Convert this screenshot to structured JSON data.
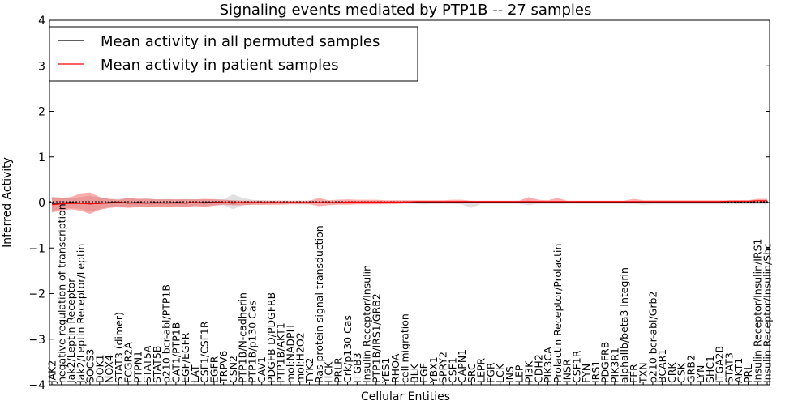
{
  "chart_data": {
    "type": "line",
    "title": "Signaling events mediated by PTP1B -- 27 samples",
    "xlabel": "Cellular Entities",
    "ylabel": "Inferred Activity",
    "ylim": [
      -4,
      4
    ],
    "yticks": [
      "4",
      "3",
      "2",
      "1",
      "0",
      "−1",
      "−2",
      "−3",
      "−4"
    ],
    "legend": {
      "placement": "top-left",
      "entries": [
        "Mean activity in all permuted samples",
        "Mean activity in patient samples"
      ]
    },
    "categories": [
      "JAK2",
      "negative regulation of transcription",
      "Jak2/Leptin Receptor",
      "Jak2/Leptin Receptor/Leptin",
      "SOCS3",
      "DOK1",
      "NOX4",
      "STAT3 (dimer)",
      "FCGR2A",
      "PTPN1",
      "STAT5A",
      "STAT5B",
      "p210 bcr-abl/PTP1B",
      "CAT1/PTP1B",
      "EGF/EGFR",
      "LAT",
      "CSF1/CSF1R",
      "EGFR",
      "TRPV6",
      "CSN2",
      "PTP1B/N-cadherin",
      "PTP1B/p130 Cas",
      "CAV1",
      "PDGFB-D/PDGFRB",
      "PTP1B/AKT1",
      "mol:NADPH",
      "mol:H2O2",
      "TYK2",
      "Ras protein signal transduction",
      "HCK",
      "PRLR",
      "Crk/p130 Cas",
      "ITGB3",
      "Insulin Receptor/Insulin",
      "PTP1B/IRS1/GRB2",
      "YES1",
      "RHOA",
      "cell migration",
      "BLK",
      "EGF",
      "YBX1",
      "SPRY2",
      "CSF1",
      "CAPN1",
      "SRC",
      "LEPR",
      "FGR",
      "LCK",
      "INS",
      "LEP",
      "PI3K",
      "CDH2",
      "PIK3CA",
      "Prolactin Receptor/Prolactin",
      "INSR",
      "CSF1R",
      "FYN",
      "IRS1",
      "PDGFRB",
      "PIK3R1",
      "alphaIIb/beta3 Integrin",
      "FER",
      "TXN",
      "p210 bcr-abl/Grb2",
      "BCAR1",
      "CRK",
      "CSK",
      "GRB2",
      "LYN",
      "SHC1",
      "ITGA2B",
      "STAT3",
      "AKT1",
      "PRL",
      "Insulin Receptor/Insulin/IRS1",
      "Insulin Receptor/Insulin/Shc"
    ],
    "series": [
      {
        "name": "Mean activity in all permuted samples",
        "color": "#000000",
        "values": [
          -0.02,
          -0.01,
          0.0,
          -0.01,
          -0.03,
          -0.02,
          0.0,
          0.01,
          -0.01,
          0.0,
          -0.01,
          0.0,
          -0.01,
          0.0,
          -0.01,
          0.0,
          0.0,
          0.01,
          0.0,
          -0.01,
          0.0,
          0.0,
          0.0,
          0.0,
          0.0,
          0.0,
          0.0,
          0.0,
          0.0,
          0.0,
          0.0,
          0.0,
          0.0,
          0.0,
          0.0,
          0.0,
          0.0,
          0.0,
          0.0,
          0.0,
          0.0,
          0.0,
          0.0,
          0.0,
          0.0,
          0.0,
          0.0,
          0.0,
          0.0,
          0.0,
          0.0,
          0.0,
          0.0,
          0.0,
          0.0,
          0.0,
          0.0,
          0.0,
          0.0,
          0.0,
          0.0,
          0.0,
          0.0,
          0.0,
          0.0,
          0.0,
          0.0,
          0.0,
          0.0,
          0.0,
          0.0,
          0.0,
          0.0,
          0.0,
          0.0,
          0.0
        ],
        "band_low": [
          -0.18,
          -0.15,
          -0.12,
          -0.14,
          -0.2,
          -0.15,
          -0.1,
          -0.08,
          -0.1,
          -0.09,
          -0.1,
          -0.08,
          -0.1,
          -0.08,
          -0.1,
          -0.07,
          -0.08,
          -0.07,
          -0.06,
          -0.15,
          -0.06,
          -0.05,
          -0.05,
          -0.04,
          -0.03,
          -0.03,
          -0.03,
          -0.03,
          -0.02,
          -0.03,
          -0.03,
          -0.03,
          -0.03,
          -0.03,
          -0.03,
          -0.03,
          -0.03,
          -0.03,
          -0.03,
          -0.04,
          -0.03,
          -0.03,
          -0.03,
          -0.04,
          -0.12,
          -0.03,
          -0.03,
          -0.03,
          -0.03,
          -0.03,
          -0.06,
          -0.03,
          -0.03,
          -0.03,
          -0.03,
          -0.03,
          -0.03,
          -0.03,
          -0.03,
          -0.03,
          -0.03,
          -0.03,
          -0.05,
          -0.04,
          -0.04,
          -0.04,
          -0.04,
          -0.04,
          -0.04,
          -0.04,
          -0.04,
          -0.04,
          -0.04,
          -0.04,
          -0.04,
          -0.04
        ],
        "band_high": [
          0.12,
          0.11,
          0.1,
          0.12,
          0.15,
          0.11,
          0.08,
          0.08,
          0.1,
          0.08,
          0.09,
          0.07,
          0.08,
          0.07,
          0.08,
          0.07,
          0.07,
          0.08,
          0.07,
          0.18,
          0.1,
          0.06,
          0.05,
          0.04,
          0.04,
          0.03,
          0.03,
          0.04,
          0.03,
          0.03,
          0.03,
          0.03,
          0.03,
          0.03,
          0.03,
          0.03,
          0.03,
          0.03,
          0.03,
          0.03,
          0.03,
          0.03,
          0.03,
          0.03,
          0.03,
          0.03,
          0.03,
          0.03,
          0.03,
          0.03,
          0.05,
          0.03,
          0.03,
          0.03,
          0.03,
          0.03,
          0.03,
          0.03,
          0.03,
          0.03,
          0.03,
          0.03,
          0.03,
          0.03,
          0.03,
          0.03,
          0.03,
          0.03,
          0.03,
          0.03,
          0.03,
          0.03,
          0.03,
          0.03,
          0.03,
          0.03
        ]
      },
      {
        "name": "Mean activity in patient samples",
        "color": "#ff0000",
        "values": [
          -0.05,
          -0.03,
          -0.02,
          -0.02,
          -0.03,
          -0.02,
          -0.01,
          0.0,
          -0.01,
          -0.01,
          -0.01,
          -0.01,
          -0.01,
          -0.01,
          -0.01,
          0.0,
          -0.01,
          0.0,
          0.0,
          0.0,
          0.0,
          0.0,
          0.0,
          0.0,
          0.0,
          0.0,
          0.0,
          0.0,
          0.0,
          0.0,
          0.0,
          0.01,
          0.01,
          0.01,
          0.01,
          0.01,
          0.01,
          0.01,
          0.02,
          0.02,
          0.02,
          0.02,
          0.02,
          0.02,
          0.02,
          0.02,
          0.02,
          0.02,
          0.02,
          0.02,
          0.02,
          0.02,
          0.02,
          0.02,
          0.02,
          0.02,
          0.02,
          0.02,
          0.02,
          0.02,
          0.02,
          0.02,
          0.02,
          0.02,
          0.02,
          0.02,
          0.02,
          0.02,
          0.02,
          0.02,
          0.02,
          0.03,
          0.03,
          0.03,
          0.04,
          0.04
        ],
        "band_low": [
          -0.22,
          -0.18,
          -0.15,
          -0.18,
          -0.25,
          -0.16,
          -0.12,
          -0.1,
          -0.12,
          -0.1,
          -0.1,
          -0.1,
          -0.1,
          -0.1,
          -0.1,
          -0.08,
          -0.1,
          -0.07,
          -0.05,
          -0.06,
          -0.06,
          -0.05,
          -0.05,
          -0.05,
          -0.05,
          -0.04,
          -0.04,
          -0.04,
          -0.08,
          -0.06,
          -0.05,
          -0.05,
          -0.04,
          -0.04,
          -0.04,
          -0.03,
          -0.03,
          -0.02,
          -0.02,
          -0.02,
          -0.02,
          -0.02,
          -0.02,
          -0.02,
          0.0,
          0.0,
          0.0,
          0.0,
          0.0,
          0.0,
          0.0,
          0.0,
          0.0,
          -0.02,
          0.0,
          0.0,
          0.0,
          0.0,
          0.0,
          0.0,
          0.0,
          0.0,
          0.0,
          0.0,
          0.0,
          0.0,
          0.0,
          0.0,
          0.0,
          0.0,
          0.0,
          0.0,
          0.0,
          0.0,
          0.02,
          0.02
        ],
        "band_high": [
          0.12,
          0.1,
          0.12,
          0.2,
          0.22,
          0.12,
          0.08,
          0.06,
          0.1,
          0.08,
          0.08,
          0.07,
          0.07,
          0.07,
          0.07,
          0.07,
          0.08,
          0.07,
          0.06,
          0.05,
          0.04,
          0.04,
          0.04,
          0.04,
          0.04,
          0.04,
          0.04,
          0.04,
          0.1,
          0.05,
          0.06,
          0.07,
          0.06,
          0.06,
          0.06,
          0.05,
          0.05,
          0.05,
          0.05,
          0.05,
          0.05,
          0.05,
          0.06,
          0.06,
          0.04,
          0.04,
          0.04,
          0.04,
          0.04,
          0.04,
          0.12,
          0.06,
          0.05,
          0.1,
          0.04,
          0.04,
          0.04,
          0.04,
          0.04,
          0.04,
          0.04,
          0.08,
          0.05,
          0.05,
          0.05,
          0.05,
          0.05,
          0.05,
          0.05,
          0.05,
          0.05,
          0.05,
          0.05,
          0.05,
          0.08,
          0.08
        ]
      }
    ]
  }
}
